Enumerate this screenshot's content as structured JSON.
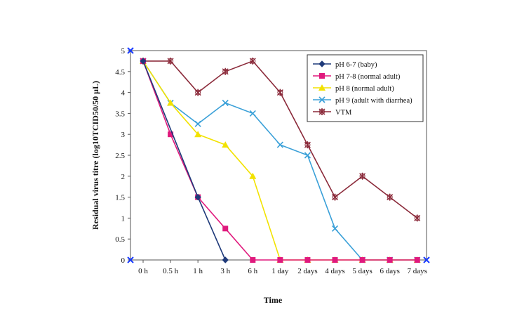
{
  "chart_data": {
    "type": "line",
    "xlabel": "Time",
    "ylabel": "Residual virus titre (log10TCID50/50 μL)",
    "categories": [
      "0 h",
      "0.5 h",
      "1 h",
      "3 h",
      "6 h",
      "1 day",
      "2 days",
      "4 days",
      "5 days",
      "6 days",
      "7 days"
    ],
    "ylim": [
      0,
      5
    ],
    "yticks": [
      "0",
      "0.5",
      "1",
      "1.5",
      "2",
      "2.5",
      "3",
      "3.5",
      "4",
      "4.5",
      "5"
    ],
    "grid": false,
    "legend_position": "top-right",
    "series": [
      {
        "name": "pH 6-7 (baby)",
        "color": "#1f3a7a",
        "marker": "diamond",
        "values": [
          4.75,
          null,
          1.5,
          0,
          null,
          null,
          null,
          null,
          null,
          null,
          null
        ]
      },
      {
        "name": "pH 7-8 (normal adult)",
        "color": "#e0197d",
        "marker": "square",
        "values": [
          4.75,
          3.0,
          1.5,
          0.75,
          0,
          0,
          0,
          0,
          0,
          0,
          0
        ]
      },
      {
        "name": "pH 8 (normal adult)",
        "color": "#f2e200",
        "marker": "triangle",
        "values": [
          4.75,
          3.75,
          3.0,
          2.75,
          2.0,
          0,
          0,
          0,
          0,
          0,
          0
        ]
      },
      {
        "name": "pH 9 (adult with diarrhea)",
        "color": "#3aa0d8",
        "marker": "x",
        "values": [
          4.75,
          3.75,
          3.25,
          3.75,
          3.5,
          2.75,
          2.5,
          0.75,
          0,
          0,
          0
        ]
      },
      {
        "name": "VTM",
        "color": "#8b2a3a",
        "marker": "star",
        "values": [
          4.75,
          4.75,
          4.0,
          4.5,
          4.75,
          4.0,
          2.75,
          1.5,
          2.0,
          1.5,
          1.0
        ]
      }
    ]
  }
}
